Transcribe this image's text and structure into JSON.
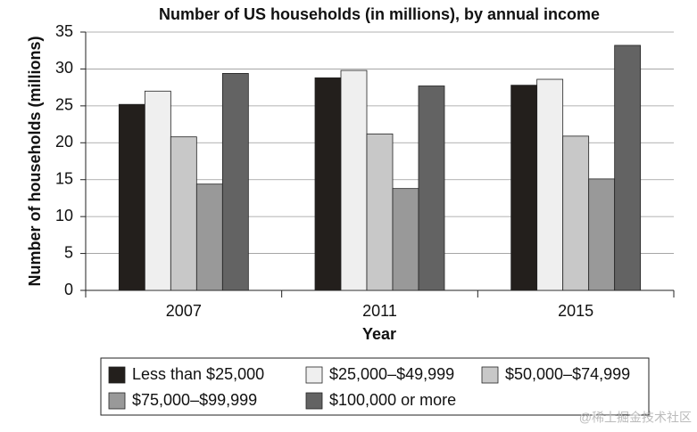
{
  "chart_data": {
    "type": "bar",
    "title": "Number of US households (in millions), by annual income",
    "x_label": "Year",
    "y_label": "Number of households (millions)",
    "categories": [
      "2007",
      "2011",
      "2015"
    ],
    "series": [
      {
        "name": "Less than $25,000",
        "color": "#231f1c",
        "values": [
          25.2,
          28.8,
          27.8
        ]
      },
      {
        "name": "$25,000–$49,999",
        "color": "#efefef",
        "values": [
          27,
          29.8,
          28.6
        ]
      },
      {
        "name": "$50,000–$74,999",
        "color": "#c8c8c8",
        "values": [
          20.8,
          21.2,
          20.9
        ]
      },
      {
        "name": "$75,000–$99,999",
        "color": "#999999",
        "values": [
          14.4,
          13.8,
          15.1
        ]
      },
      {
        "name": "$100,000 or more",
        "color": "#636363",
        "values": [
          29.4,
          27.7,
          33.2
        ]
      }
    ],
    "ylim": [
      0,
      35
    ],
    "yticks": [
      0,
      5,
      10,
      15,
      20,
      25,
      30,
      35
    ],
    "grid": true,
    "legend_position": "bottom",
    "watermark": "@稀土掘金技术社区"
  }
}
